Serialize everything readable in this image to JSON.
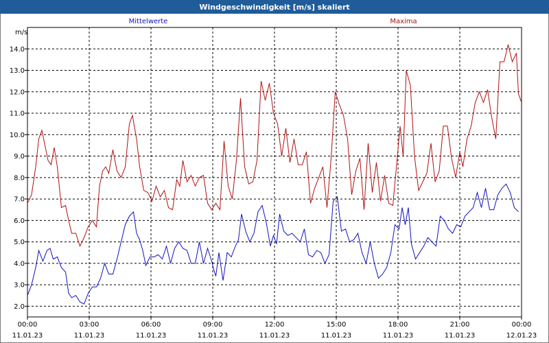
{
  "window": {
    "title": "Windgeschwindigkeit [m/s] skaliert"
  },
  "colors": {
    "mean": "#1010c0",
    "max": "#b01010",
    "titlebar": "#1f5c99"
  },
  "chart_data": {
    "type": "line",
    "title": "Windgeschwindigkeit [m/s] skaliert",
    "ylabel": "m/s",
    "ylim": [
      1.5,
      15.0
    ],
    "xlim_hours": [
      0,
      24
    ],
    "grid": true,
    "legend_placement": "top",
    "y_ticks": [
      "2.0",
      "3.0",
      "4.0",
      "5.0",
      "6.0",
      "7.0",
      "8.0",
      "9.0",
      "10.0",
      "11.0",
      "12.0",
      "13.0",
      "14.0"
    ],
    "x_ticks": [
      {
        "time": "00:00",
        "date": "11.01.23"
      },
      {
        "time": "03:00",
        "date": "11.01.23"
      },
      {
        "time": "06:00",
        "date": "11.01.23"
      },
      {
        "time": "09:00",
        "date": "11.01.23"
      },
      {
        "time": "12:00",
        "date": "11.01.23"
      },
      {
        "time": "15:00",
        "date": "11.01.23"
      },
      {
        "time": "18:00",
        "date": "11.01.23"
      },
      {
        "time": "21:00",
        "date": "11.01.23"
      },
      {
        "time": "00:00",
        "date": "12.01.23"
      }
    ],
    "series": [
      {
        "name": "Mittelwerte",
        "points": [
          [
            0.0,
            2.5
          ],
          [
            0.2,
            3.0
          ],
          [
            0.4,
            3.8
          ],
          [
            0.55,
            4.6
          ],
          [
            0.75,
            4.1
          ],
          [
            0.95,
            4.6
          ],
          [
            1.1,
            4.7
          ],
          [
            1.25,
            4.2
          ],
          [
            1.45,
            4.3
          ],
          [
            1.65,
            3.8
          ],
          [
            1.85,
            3.6
          ],
          [
            2.0,
            2.6
          ],
          [
            2.15,
            2.4
          ],
          [
            2.35,
            2.5
          ],
          [
            2.55,
            2.2
          ],
          [
            2.75,
            2.1
          ],
          [
            2.95,
            2.6
          ],
          [
            3.15,
            2.9
          ],
          [
            3.35,
            2.9
          ],
          [
            3.55,
            3.3
          ],
          [
            3.75,
            4.0
          ],
          [
            3.95,
            3.5
          ],
          [
            4.15,
            3.5
          ],
          [
            4.35,
            4.2
          ],
          [
            4.55,
            5.0
          ],
          [
            4.75,
            5.8
          ],
          [
            4.95,
            6.2
          ],
          [
            5.15,
            6.4
          ],
          [
            5.3,
            5.4
          ],
          [
            5.45,
            5.1
          ],
          [
            5.6,
            4.6
          ],
          [
            5.75,
            3.9
          ],
          [
            5.95,
            4.3
          ],
          [
            6.15,
            4.3
          ],
          [
            6.35,
            4.4
          ],
          [
            6.55,
            4.2
          ],
          [
            6.75,
            4.8
          ],
          [
            6.95,
            4.0
          ],
          [
            7.15,
            4.7
          ],
          [
            7.35,
            5.0
          ],
          [
            7.55,
            4.7
          ],
          [
            7.75,
            4.6
          ],
          [
            7.95,
            4.0
          ],
          [
            8.15,
            4.0
          ],
          [
            8.35,
            5.0
          ],
          [
            8.55,
            4.0
          ],
          [
            8.75,
            4.7
          ],
          [
            8.95,
            4.1
          ],
          [
            9.05,
            3.7
          ],
          [
            9.15,
            3.4
          ],
          [
            9.3,
            4.5
          ],
          [
            9.5,
            3.2
          ],
          [
            9.7,
            4.5
          ],
          [
            9.9,
            4.3
          ],
          [
            10.1,
            4.8
          ],
          [
            10.25,
            5.1
          ],
          [
            10.4,
            6.3
          ],
          [
            10.6,
            5.5
          ],
          [
            10.8,
            5.0
          ],
          [
            11.0,
            5.4
          ],
          [
            11.2,
            6.4
          ],
          [
            11.4,
            6.7
          ],
          [
            11.6,
            5.9
          ],
          [
            11.8,
            4.8
          ],
          [
            11.95,
            5.3
          ],
          [
            12.1,
            4.9
          ],
          [
            12.25,
            6.3
          ],
          [
            12.45,
            5.5
          ],
          [
            12.65,
            5.3
          ],
          [
            12.85,
            5.4
          ],
          [
            13.05,
            5.2
          ],
          [
            13.25,
            5.0
          ],
          [
            13.45,
            5.6
          ],
          [
            13.65,
            4.4
          ],
          [
            13.85,
            4.3
          ],
          [
            14.05,
            4.6
          ],
          [
            14.25,
            4.5
          ],
          [
            14.45,
            4.0
          ],
          [
            14.65,
            4.4
          ],
          [
            14.85,
            6.9
          ],
          [
            15.05,
            7.1
          ],
          [
            15.25,
            5.5
          ],
          [
            15.45,
            5.6
          ],
          [
            15.65,
            5.0
          ],
          [
            15.85,
            5.1
          ],
          [
            16.05,
            5.4
          ],
          [
            16.25,
            4.5
          ],
          [
            16.45,
            4.0
          ],
          [
            16.65,
            5.0
          ],
          [
            16.85,
            4.0
          ],
          [
            17.05,
            3.3
          ],
          [
            17.25,
            3.5
          ],
          [
            17.45,
            3.8
          ],
          [
            17.65,
            4.5
          ],
          [
            17.85,
            5.8
          ],
          [
            18.05,
            5.6
          ],
          [
            18.2,
            6.6
          ],
          [
            18.35,
            5.8
          ],
          [
            18.5,
            6.6
          ],
          [
            18.65,
            4.9
          ],
          [
            18.85,
            4.2
          ],
          [
            19.05,
            4.5
          ],
          [
            19.25,
            4.8
          ],
          [
            19.45,
            5.2
          ],
          [
            19.65,
            5.0
          ],
          [
            19.85,
            4.8
          ],
          [
            20.05,
            6.2
          ],
          [
            20.25,
            6.0
          ],
          [
            20.45,
            5.6
          ],
          [
            20.65,
            5.4
          ],
          [
            20.85,
            5.8
          ],
          [
            21.05,
            5.7
          ],
          [
            21.25,
            6.2
          ],
          [
            21.45,
            6.4
          ],
          [
            21.65,
            6.6
          ],
          [
            21.85,
            7.3
          ],
          [
            22.05,
            6.6
          ],
          [
            22.25,
            7.5
          ],
          [
            22.45,
            6.5
          ],
          [
            22.65,
            6.5
          ],
          [
            22.85,
            7.2
          ],
          [
            23.05,
            7.5
          ],
          [
            23.25,
            7.7
          ],
          [
            23.45,
            7.3
          ],
          [
            23.65,
            6.6
          ],
          [
            23.85,
            6.4
          ]
        ]
      },
      {
        "name": "Maxima",
        "points": [
          [
            0.0,
            6.8
          ],
          [
            0.2,
            7.2
          ],
          [
            0.4,
            8.5
          ],
          [
            0.55,
            9.8
          ],
          [
            0.7,
            10.2
          ],
          [
            0.85,
            9.5
          ],
          [
            1.0,
            8.8
          ],
          [
            1.15,
            8.6
          ],
          [
            1.3,
            9.4
          ],
          [
            1.45,
            8.5
          ],
          [
            1.65,
            6.6
          ],
          [
            1.85,
            6.7
          ],
          [
            2.0,
            6.0
          ],
          [
            2.15,
            5.4
          ],
          [
            2.35,
            5.4
          ],
          [
            2.55,
            4.8
          ],
          [
            2.75,
            5.2
          ],
          [
            2.95,
            5.7
          ],
          [
            3.15,
            6.0
          ],
          [
            3.35,
            5.7
          ],
          [
            3.5,
            7.6
          ],
          [
            3.65,
            8.3
          ],
          [
            3.8,
            8.5
          ],
          [
            3.95,
            8.2
          ],
          [
            4.15,
            9.3
          ],
          [
            4.35,
            8.3
          ],
          [
            4.55,
            8.0
          ],
          [
            4.75,
            8.5
          ],
          [
            4.95,
            10.5
          ],
          [
            5.1,
            10.9
          ],
          [
            5.3,
            9.8
          ],
          [
            5.45,
            8.5
          ],
          [
            5.65,
            7.4
          ],
          [
            5.85,
            7.3
          ],
          [
            6.05,
            6.9
          ],
          [
            6.25,
            7.6
          ],
          [
            6.45,
            7.1
          ],
          [
            6.65,
            7.4
          ],
          [
            6.85,
            6.6
          ],
          [
            7.05,
            6.5
          ],
          [
            7.25,
            7.9
          ],
          [
            7.4,
            7.6
          ],
          [
            7.55,
            8.8
          ],
          [
            7.75,
            7.8
          ],
          [
            7.95,
            8.1
          ],
          [
            8.15,
            7.6
          ],
          [
            8.35,
            8.0
          ],
          [
            8.55,
            8.1
          ],
          [
            8.75,
            6.8
          ],
          [
            8.95,
            6.5
          ],
          [
            9.15,
            6.8
          ],
          [
            9.35,
            6.5
          ],
          [
            9.55,
            9.7
          ],
          [
            9.75,
            7.6
          ],
          [
            9.95,
            7.0
          ],
          [
            10.15,
            8.8
          ],
          [
            10.35,
            11.7
          ],
          [
            10.55,
            8.5
          ],
          [
            10.75,
            7.7
          ],
          [
            10.95,
            7.8
          ],
          [
            11.15,
            8.8
          ],
          [
            11.35,
            12.5
          ],
          [
            11.55,
            11.6
          ],
          [
            11.75,
            12.4
          ],
          [
            11.95,
            11.0
          ],
          [
            12.15,
            10.5
          ],
          [
            12.35,
            9.0
          ],
          [
            12.55,
            10.3
          ],
          [
            12.75,
            8.7
          ],
          [
            12.95,
            9.8
          ],
          [
            13.15,
            8.6
          ],
          [
            13.35,
            8.6
          ],
          [
            13.55,
            9.2
          ],
          [
            13.75,
            6.8
          ],
          [
            13.95,
            7.5
          ],
          [
            14.15,
            8.0
          ],
          [
            14.35,
            8.5
          ],
          [
            14.55,
            6.6
          ],
          [
            14.75,
            8.9
          ],
          [
            14.95,
            12.0
          ],
          [
            15.15,
            11.4
          ],
          [
            15.35,
            10.9
          ],
          [
            15.55,
            9.8
          ],
          [
            15.75,
            7.2
          ],
          [
            15.95,
            8.3
          ],
          [
            16.15,
            8.9
          ],
          [
            16.35,
            6.5
          ],
          [
            16.55,
            9.6
          ],
          [
            16.75,
            7.3
          ],
          [
            16.95,
            8.7
          ],
          [
            17.15,
            6.9
          ],
          [
            17.35,
            8.1
          ],
          [
            17.55,
            6.8
          ],
          [
            17.75,
            6.7
          ],
          [
            17.95,
            8.8
          ],
          [
            18.1,
            10.4
          ],
          [
            18.25,
            9.0
          ],
          [
            18.4,
            13.0
          ],
          [
            18.6,
            12.3
          ],
          [
            18.8,
            9.0
          ],
          [
            19.0,
            7.4
          ],
          [
            19.2,
            7.8
          ],
          [
            19.4,
            8.2
          ],
          [
            19.6,
            9.6
          ],
          [
            19.8,
            7.8
          ],
          [
            20.0,
            8.3
          ],
          [
            20.2,
            10.4
          ],
          [
            20.4,
            10.4
          ],
          [
            20.6,
            8.9
          ],
          [
            20.8,
            8.0
          ],
          [
            21.0,
            9.2
          ],
          [
            21.15,
            8.5
          ],
          [
            21.35,
            9.8
          ],
          [
            21.55,
            10.4
          ],
          [
            21.75,
            11.5
          ],
          [
            21.95,
            12.0
          ],
          [
            22.15,
            11.5
          ],
          [
            22.35,
            12.1
          ],
          [
            22.55,
            10.8
          ],
          [
            22.75,
            9.8
          ],
          [
            22.95,
            13.4
          ],
          [
            23.15,
            13.4
          ],
          [
            23.35,
            14.2
          ],
          [
            23.55,
            13.4
          ],
          [
            23.75,
            13.8
          ],
          [
            23.85,
            11.9
          ],
          [
            24.0,
            11.5
          ]
        ]
      }
    ]
  }
}
